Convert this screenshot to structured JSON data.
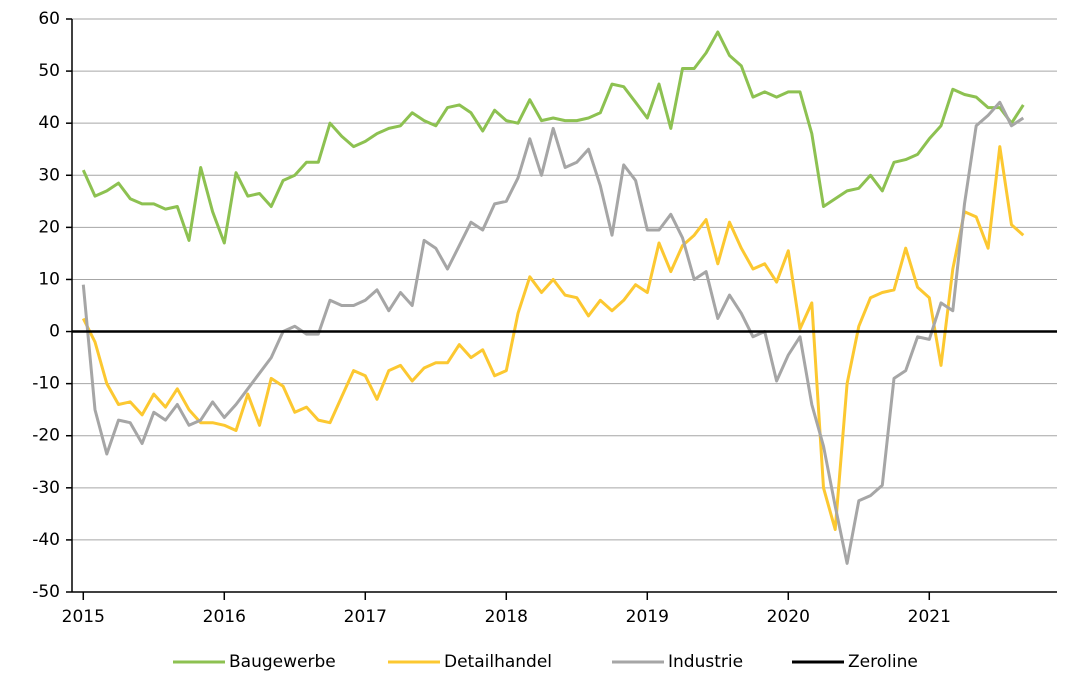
{
  "chart_data": {
    "type": "line",
    "x": [
      2015,
      2015.083,
      2015.167,
      2015.25,
      2015.333,
      2015.417,
      2015.5,
      2015.583,
      2015.667,
      2015.75,
      2015.833,
      2015.917,
      2016,
      2016.083,
      2016.167,
      2016.25,
      2016.333,
      2016.417,
      2016.5,
      2016.583,
      2016.667,
      2016.75,
      2016.833,
      2016.917,
      2017,
      2017.083,
      2017.167,
      2017.25,
      2017.333,
      2017.417,
      2017.5,
      2017.583,
      2017.667,
      2017.75,
      2017.833,
      2017.917,
      2018,
      2018.083,
      2018.167,
      2018.25,
      2018.333,
      2018.417,
      2018.5,
      2018.583,
      2018.667,
      2018.75,
      2018.833,
      2018.917,
      2019,
      2019.083,
      2019.167,
      2019.25,
      2019.333,
      2019.417,
      2019.5,
      2019.583,
      2019.667,
      2019.75,
      2019.833,
      2019.917,
      2020,
      2020.083,
      2020.167,
      2020.25,
      2020.333,
      2020.417,
      2020.5,
      2020.583,
      2020.667,
      2020.75,
      2020.833,
      2020.917,
      2021,
      2021.083,
      2021.167,
      2021.25,
      2021.333,
      2021.417,
      2021.5,
      2021.583,
      2021.667
    ],
    "series": [
      {
        "name": "Baugewerbe",
        "color": "#8dc151",
        "values": [
          31,
          26,
          27,
          28.5,
          25.5,
          24.5,
          24.5,
          23.5,
          24,
          17.5,
          31.5,
          23,
          17,
          30.5,
          26,
          26.5,
          24,
          29,
          30,
          32.5,
          32.5,
          40,
          37.5,
          35.5,
          36.5,
          38,
          39,
          39.5,
          42,
          40.5,
          39.5,
          43,
          43.5,
          42,
          38.5,
          42.5,
          40.5,
          40,
          44.5,
          40.5,
          41,
          40.5,
          40.5,
          41,
          42,
          47.5,
          47,
          44,
          41,
          47.5,
          39,
          50.5,
          50.5,
          53.5,
          57.5,
          53,
          51,
          45,
          46,
          45,
          46,
          46,
          38,
          24,
          25.5,
          27,
          27.5,
          30,
          27,
          32.5,
          33,
          34,
          37,
          39.5,
          46.5,
          45.5,
          45,
          43,
          43,
          40,
          43.5
        ]
      },
      {
        "name": "Detailhandel",
        "color": "#fcc831",
        "values": [
          2.5,
          -2,
          -10,
          -14,
          -13.5,
          -16,
          -12,
          -14.5,
          -11,
          -15,
          -17.5,
          -17.5,
          -18,
          -19,
          -12,
          -18,
          -9,
          -10.5,
          -15.5,
          -14.5,
          -17,
          -17.5,
          -12.5,
          -7.5,
          -8.5,
          -13,
          -7.5,
          -6.5,
          -9.5,
          -7,
          -6,
          -6,
          -2.5,
          -5,
          -3.5,
          -8.5,
          -7.5,
          3.5,
          10.5,
          7.5,
          10,
          7,
          6.5,
          3,
          6,
          4,
          6,
          9,
          7.5,
          17,
          11.5,
          16.5,
          18.5,
          21.5,
          13,
          21,
          16,
          12,
          13,
          9.5,
          15.5,
          0.5,
          5.5,
          -30,
          -38,
          -10,
          1,
          6.5,
          7.5,
          8,
          16,
          8.5,
          6.5,
          -6.5,
          12,
          23,
          22,
          16,
          35.5,
          20.5,
          18.5
        ]
      },
      {
        "name": "Industrie",
        "color": "#a6a6a6",
        "values": [
          9,
          -15,
          -23.5,
          -17,
          -17.5,
          -21.5,
          -15.5,
          -17,
          -14,
          -18,
          -17,
          -13.5,
          -16.5,
          -14,
          -11,
          -8,
          -5,
          0,
          1,
          -0.5,
          -0.5,
          6,
          5,
          5,
          6,
          8,
          4,
          7.5,
          5,
          17.5,
          16,
          12,
          16.5,
          21,
          19.5,
          24.5,
          25,
          29.5,
          37,
          30,
          39,
          31.5,
          32.5,
          35,
          28,
          18.5,
          32,
          29,
          19.5,
          19.5,
          22.5,
          18,
          10,
          11.5,
          2.5,
          7,
          3.5,
          -1,
          0,
          -9.5,
          -4.5,
          -1,
          -14,
          -22,
          -33.5,
          -44.5,
          -32.5,
          -31.5,
          -29.5,
          -9,
          -7.5,
          -1,
          -1.5,
          5.5,
          4,
          24.5,
          39.5,
          41.5,
          44,
          39.5,
          41
        ]
      }
    ],
    "reference_line": {
      "name": "Zeroline",
      "value": 0,
      "color": "#000000"
    },
    "xlim": [
      2014.92,
      2021.92
    ],
    "xticks": [
      2015,
      2016,
      2017,
      2018,
      2019,
      2020,
      2021
    ],
    "ylim": [
      -50,
      60
    ],
    "yticks": [
      -50,
      -40,
      -30,
      -20,
      -10,
      0,
      10,
      20,
      30,
      40,
      50,
      60
    ],
    "grid": true,
    "legend": "bottom"
  }
}
